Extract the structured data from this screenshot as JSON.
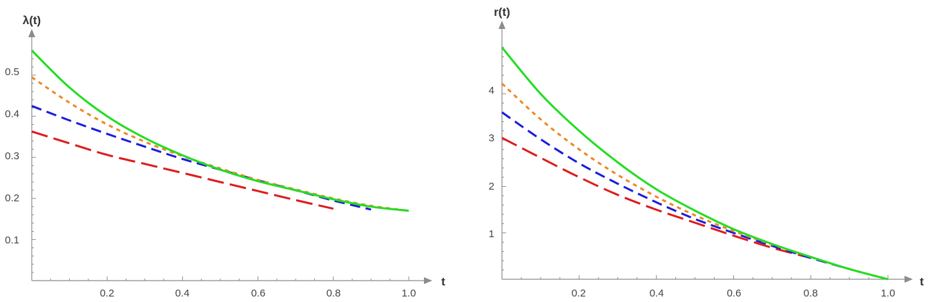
{
  "chart_data": [
    {
      "type": "line",
      "title": "",
      "xlabel": "t",
      "ylabel": "λ(t)",
      "xlim": [
        0,
        1.0
      ],
      "ylim": [
        0,
        0.58
      ],
      "xticks": [
        0.2,
        0.4,
        0.6,
        0.8,
        1.0
      ],
      "xtick_labels": [
        "0.2",
        "0.4",
        "0.6",
        "0.8",
        "1.0"
      ],
      "yticks": [
        0.1,
        0.2,
        0.3,
        0.4,
        0.5
      ],
      "ytick_labels": [
        "0.1",
        "0.2",
        "0.3",
        "0.4",
        "0.5"
      ],
      "grid": false,
      "series": [
        {
          "color": "#dd1c1c",
          "dash": "long-dash",
          "x": [
            0,
            0.1,
            0.2,
            0.3,
            0.4,
            0.5,
            0.6,
            0.7,
            0.8
          ],
          "y": [
            0.363,
            0.334,
            0.306,
            0.284,
            0.262,
            0.24,
            0.218,
            0.196,
            0.175
          ]
        },
        {
          "color": "#1c1cdd",
          "dash": "medium-dash",
          "x": [
            0,
            0.1,
            0.2,
            0.3,
            0.4,
            0.5,
            0.6,
            0.7,
            0.8,
            0.9
          ],
          "y": [
            0.425,
            0.39,
            0.357,
            0.326,
            0.296,
            0.27,
            0.244,
            0.22,
            0.195,
            0.173
          ]
        },
        {
          "color": "#ee8822",
          "dash": "short-dash",
          "x": [
            0,
            0.1,
            0.2,
            0.3,
            0.4,
            0.5,
            0.6,
            0.7,
            0.8,
            0.9,
            1.0
          ],
          "y": [
            0.495,
            0.433,
            0.38,
            0.338,
            0.303,
            0.273,
            0.245,
            0.222,
            0.2,
            0.182,
            0.17
          ]
        },
        {
          "color": "#22dd22",
          "dash": "solid",
          "x": [
            0,
            0.1,
            0.2,
            0.3,
            0.4,
            0.5,
            0.6,
            0.7,
            0.8,
            0.9,
            1.0
          ],
          "y": [
            0.56,
            0.47,
            0.4,
            0.347,
            0.305,
            0.27,
            0.242,
            0.22,
            0.198,
            0.18,
            0.17
          ]
        }
      ]
    },
    {
      "type": "line",
      "title": "",
      "xlabel": "t",
      "ylabel": "r(t)",
      "xlim": [
        0,
        1.0
      ],
      "ylim": [
        0,
        5.1
      ],
      "xticks": [
        0.2,
        0.4,
        0.6,
        0.8,
        1.0
      ],
      "xtick_labels": [
        "0.2",
        "0.4",
        "0.6",
        "0.8",
        "1.0"
      ],
      "yticks": [
        1,
        2,
        3,
        4
      ],
      "ytick_labels": [
        "1",
        "2",
        "3",
        "4"
      ],
      "grid": false,
      "series": [
        {
          "color": "#dd1c1c",
          "dash": "long-dash",
          "x": [
            0,
            0.1,
            0.2,
            0.3,
            0.4,
            0.5,
            0.6,
            0.7,
            0.8
          ],
          "y": [
            3.05,
            2.62,
            2.2,
            1.82,
            1.5,
            1.22,
            0.94,
            0.68,
            0.46
          ]
        },
        {
          "color": "#1c1cdd",
          "dash": "medium-dash",
          "x": [
            0,
            0.1,
            0.2,
            0.3,
            0.4,
            0.5,
            0.6,
            0.7,
            0.8,
            0.9
          ],
          "y": [
            3.6,
            3.02,
            2.5,
            2.06,
            1.66,
            1.3,
            1.0,
            0.72,
            0.46,
            0.22
          ]
        },
        {
          "color": "#ee8822",
          "dash": "short-dash",
          "x": [
            0,
            0.1,
            0.2,
            0.3,
            0.4,
            0.5,
            0.6,
            0.7,
            0.8,
            0.9,
            1.0
          ],
          "y": [
            4.22,
            3.45,
            2.8,
            2.25,
            1.78,
            1.38,
            1.04,
            0.75,
            0.48,
            0.22,
            0.0
          ]
        },
        {
          "color": "#22dd22",
          "dash": "solid",
          "x": [
            0,
            0.1,
            0.2,
            0.3,
            0.4,
            0.5,
            0.6,
            0.7,
            0.8,
            0.9,
            1.0
          ],
          "y": [
            5.0,
            4.0,
            3.2,
            2.52,
            1.94,
            1.48,
            1.08,
            0.76,
            0.48,
            0.22,
            0.0
          ]
        }
      ]
    }
  ]
}
